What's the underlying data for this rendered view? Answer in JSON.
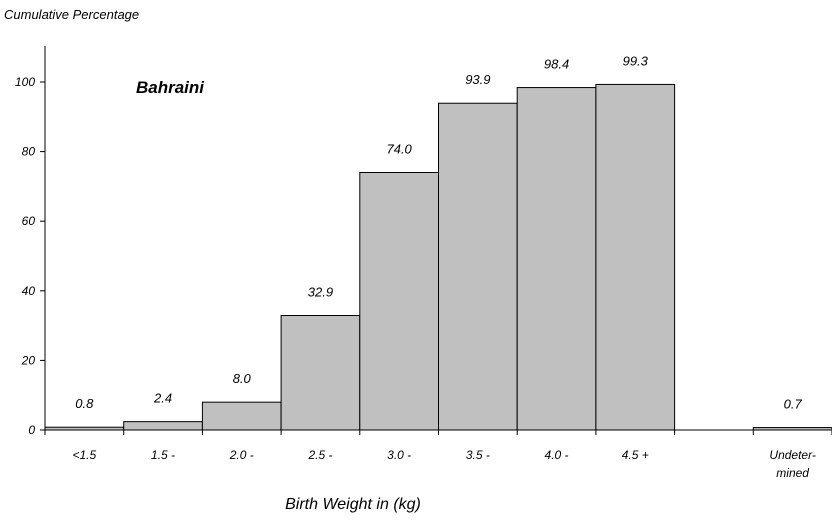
{
  "chart_data": {
    "type": "bar",
    "title": "",
    "ylabel": "Cumulative Percentage",
    "xlabel": "Birth Weight in (kg)",
    "series_label": "Bahraini",
    "ylim": [
      0,
      100
    ],
    "yticks": [
      0,
      20,
      40,
      60,
      80,
      100
    ],
    "grid": false,
    "categories": [
      "<1.5",
      "1.5 -",
      "2.0 -",
      "2.5 -",
      "3.0 -",
      "3.5 -",
      "4.0 -",
      "4.5 +",
      "",
      "Undeter-\nmined"
    ],
    "values": [
      0.8,
      2.4,
      8.0,
      32.9,
      74.0,
      93.9,
      98.4,
      99.3,
      null,
      0.7
    ],
    "data_labels": [
      "0.8",
      "2.4",
      "8.0",
      "32.9",
      "74.0",
      "93.9",
      "98.4",
      "99.3",
      "",
      "0.7"
    ],
    "bar_color": "#c0c0c0"
  }
}
